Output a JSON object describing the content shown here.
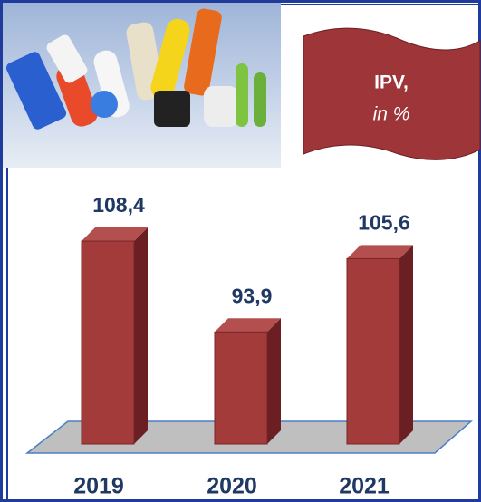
{
  "chart_data": {
    "type": "bar3d",
    "title": "IPV,",
    "subtitle": "in %",
    "categories": [
      "2019",
      "2020",
      "2021"
    ],
    "values": [
      108.4,
      93.9,
      105.6
    ],
    "value_labels": [
      "108,4",
      "93,9",
      "105,6"
    ],
    "color": "#a33b3b",
    "ylim": [
      76,
      110
    ]
  }
}
